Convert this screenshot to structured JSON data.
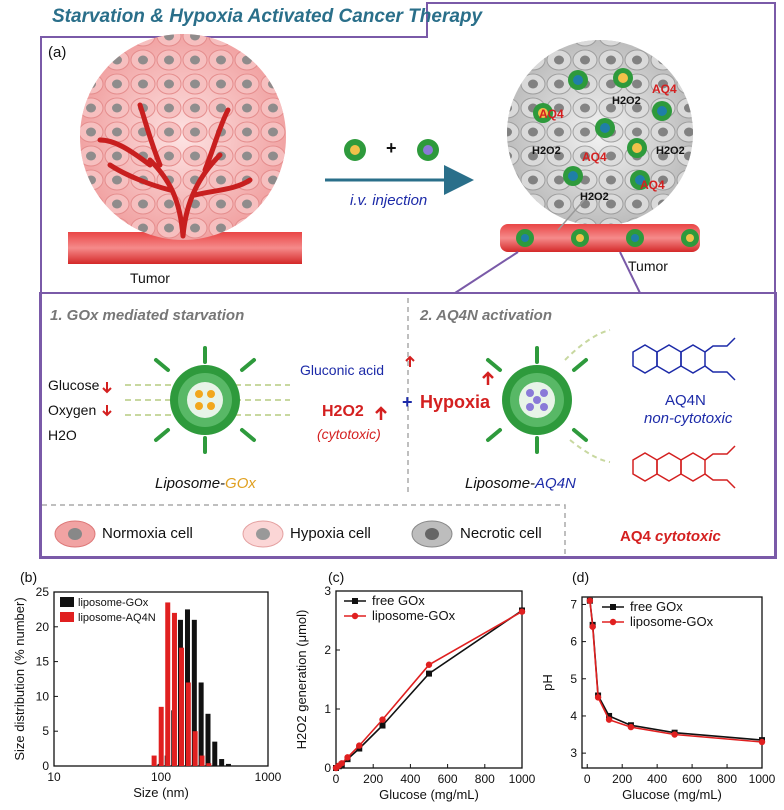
{
  "scheme": {
    "title": "Starvation & Hypoxia Activated Cancer Therapy",
    "panel_a": "(a)",
    "tumor_left": "Tumor",
    "tumor_right": "Tumor",
    "injection": "i.v. injection",
    "plus": "+",
    "cell_labels": [
      "AQ4",
      "AQ4",
      "AQ4",
      "AQ4",
      "H2O2",
      "H2O2",
      "H2O2",
      "H2O2"
    ],
    "step1_title": "1. GOx mediated starvation",
    "step2_title": "2. AQ4N activation",
    "inputs": [
      "Glucose",
      "Oxygen",
      "H2O"
    ],
    "gluconic": "Gluconic acid",
    "h2o2": "H2O2",
    "cytotoxic_paren": "(cytotoxic)",
    "plus2": "+",
    "hypoxia": "Hypoxia",
    "liposome_gox_prefix": "Liposome-",
    "liposome_gox_suffix": "GOx",
    "liposome_aq4n_prefix": "Liposome-",
    "liposome_aq4n_suffix": "AQ4N",
    "aq4n_name": "AQ4N",
    "aq4n_desc": "non-cytotoxic",
    "aq4_name": "AQ4",
    "aq4_desc": "cytotoxic",
    "legend": [
      "Normoxia cell",
      "Hypoxia cell",
      "Necrotic cell"
    ],
    "colors": {
      "frame": "#7a5aa8",
      "title": "#2a6f8a",
      "red": "#d42020",
      "blue": "#1c2aa8",
      "gold": "#e0a020",
      "green": "#2e9a3c"
    }
  },
  "chart_data": [
    {
      "panel": "(b)",
      "type": "bar",
      "xlabel": "Size (nm)",
      "ylabel": "Size distribution (% number)",
      "xscale": "log",
      "xlim": [
        10,
        1000
      ],
      "ylim": [
        0,
        25
      ],
      "xticks": [
        "10",
        "100",
        "1000"
      ],
      "yticks": [
        "0",
        "5",
        "10",
        "15",
        "20",
        "25"
      ],
      "legend": "top-left",
      "x": [
        91,
        106,
        122,
        141,
        164,
        190,
        220,
        255,
        295,
        342,
        396
      ],
      "series": [
        {
          "name": "liposome-GOx",
          "color": "#111111",
          "values": [
            0.3,
            1.5,
            8.0,
            21.0,
            22.5,
            21.0,
            12.0,
            7.5,
            3.5,
            1.0,
            0.3
          ]
        },
        {
          "name": "liposome-AQ4N",
          "color": "#e02020",
          "values": [
            1.5,
            8.5,
            23.5,
            22.0,
            17.0,
            12.0,
            5.0,
            1.5,
            0.4,
            0,
            0
          ]
        }
      ]
    },
    {
      "panel": "(c)",
      "type": "line",
      "xlabel": "Glucose (mg/mL)",
      "ylabel": "H2O2 generation (μmol)",
      "xlim": [
        0,
        1000
      ],
      "ylim": [
        0,
        3
      ],
      "xticks": [
        "0",
        "200",
        "400",
        "600",
        "800",
        "1000"
      ],
      "yticks": [
        "0",
        "1",
        "2",
        "3"
      ],
      "legend": "top-left",
      "x": [
        0,
        15,
        31,
        62,
        125,
        250,
        500,
        1000
      ],
      "series": [
        {
          "name": "free GOx",
          "color": "#111111",
          "values": [
            0,
            0.03,
            0.06,
            0.15,
            0.33,
            0.72,
            1.6,
            2.67
          ]
        },
        {
          "name": "liposome-GOx",
          "color": "#e02020",
          "values": [
            0,
            0.04,
            0.08,
            0.18,
            0.38,
            0.82,
            1.75,
            2.65
          ]
        }
      ]
    },
    {
      "panel": "(d)",
      "type": "line",
      "xlabel": "Glucose (mg/mL)",
      "ylabel": "pH",
      "xlim": [
        -30,
        1000
      ],
      "ylim": [
        2.6,
        7.2
      ],
      "xticks": [
        "0",
        "200",
        "400",
        "600",
        "800",
        "1000"
      ],
      "yticks": [
        "3",
        "4",
        "5",
        "6",
        "7"
      ],
      "legend": "top-right",
      "x": [
        15,
        31,
        62,
        125,
        250,
        500,
        1000
      ],
      "series": [
        {
          "name": "free GOx",
          "color": "#111111",
          "values": [
            7.1,
            6.45,
            4.55,
            4.0,
            3.75,
            3.55,
            3.35
          ]
        },
        {
          "name": "liposome-GOx",
          "color": "#e02020",
          "values": [
            7.1,
            6.4,
            4.5,
            3.9,
            3.7,
            3.5,
            3.3
          ]
        }
      ]
    }
  ]
}
